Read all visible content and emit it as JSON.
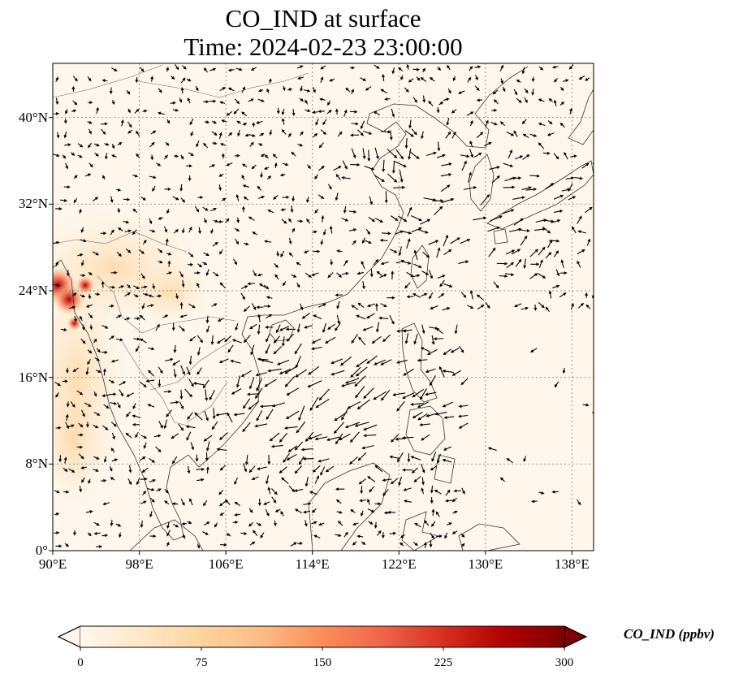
{
  "title": {
    "line1": "CO_IND at surface",
    "line2": "Time: 2024-02-23 23:00:00"
  },
  "map": {
    "lon_range": [
      90,
      140
    ],
    "lat_range": [
      0,
      45
    ],
    "lon_ticks": [
      {
        "value": 90,
        "label": "90°E"
      },
      {
        "value": 98,
        "label": "98°E"
      },
      {
        "value": 106,
        "label": "106°E"
      },
      {
        "value": 114,
        "label": "114°E"
      },
      {
        "value": 122,
        "label": "122°E"
      },
      {
        "value": 130,
        "label": "130°E"
      },
      {
        "value": 138,
        "label": "138°E"
      }
    ],
    "lat_ticks": [
      {
        "value": 0,
        "label": "0°"
      },
      {
        "value": 8,
        "label": "8°N"
      },
      {
        "value": 16,
        "label": "16°N"
      },
      {
        "value": 24,
        "label": "24°N"
      },
      {
        "value": 32,
        "label": "32°N"
      },
      {
        "value": 40,
        "label": "40°N"
      }
    ],
    "gridlines": "dotted",
    "background_color": "#fff7ec",
    "hotspots": [
      {
        "lon": 90.5,
        "lat": 24.5,
        "value": 270
      },
      {
        "lon": 91.5,
        "lat": 23.2,
        "value": 220
      },
      {
        "lon": 93,
        "lat": 24.5,
        "value": 110
      },
      {
        "lon": 92,
        "lat": 21,
        "value": 70
      }
    ],
    "vectors": "wind vectors"
  },
  "colorbar": {
    "label": "CO_IND (ppbv)",
    "min": 0,
    "max": 300,
    "ticks": [
      {
        "value": 0,
        "label": "0"
      },
      {
        "value": 75,
        "label": "75"
      },
      {
        "value": 150,
        "label": "150"
      },
      {
        "value": 225,
        "label": "225"
      },
      {
        "value": 300,
        "label": "300"
      }
    ],
    "colormap": "OrRd",
    "extend": "both",
    "colors": [
      "#fff7ec",
      "#fee8c8",
      "#fdd49e",
      "#fdbb84",
      "#fc8d59",
      "#ef6548",
      "#d7301f",
      "#b30000",
      "#7f0000"
    ]
  }
}
